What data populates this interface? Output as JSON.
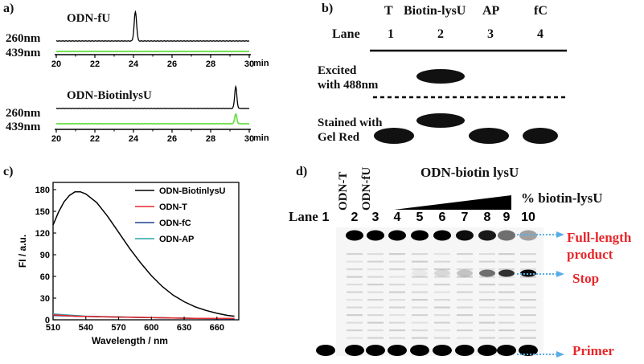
{
  "panel_a": {
    "label": "a)",
    "x_unit": "min",
    "upper": {
      "name": "ODN-fU",
      "ch1": "260nm",
      "ch2": "439nm",
      "peak_260": 24.1,
      "peak_439": null
    },
    "lower": {
      "name": "ODN-BiotinlysU",
      "ch1": "260nm",
      "ch2": "439nm",
      "peak_260": 29.3,
      "peak_439": 29.3
    },
    "ticks": [
      "20",
      "22",
      "24",
      "26",
      "28",
      "30"
    ],
    "colors": {
      "ch1": "#000000",
      "ch2": "#6ee04a"
    }
  },
  "panel_b": {
    "label": "b)",
    "lane_header": "Lane",
    "lanes": [
      {
        "name": "T",
        "num": "1"
      },
      {
        "name": "Biotin-lysU",
        "num": "2"
      },
      {
        "name": "AP",
        "num": "3"
      },
      {
        "name": "fC",
        "num": "4"
      }
    ],
    "row1": "Excited\nwith 488nm",
    "row2": "Stained with\nGel Red"
  },
  "panel_c": {
    "label": "c)",
    "legend": [
      {
        "name": "ODN-BiotinlysU",
        "color": "#000000"
      },
      {
        "name": "ODN-T",
        "color": "#e8262a"
      },
      {
        "name": "ODN-fC",
        "color": "#1f3f8f"
      },
      {
        "name": "ODN-AP",
        "color": "#2aa5a5"
      }
    ]
  },
  "chart_data": {
    "type": "line",
    "title": "",
    "xlabel": "Wavelength / nm",
    "ylabel": "FI / a.u.",
    "xlim": [
      510,
      680
    ],
    "ylim": [
      0,
      190
    ],
    "x_ticks": [
      "510",
      "540",
      "570",
      "600",
      "630",
      "660"
    ],
    "y_ticks": [
      "0",
      "30",
      "60",
      "90",
      "120",
      "150",
      "180"
    ],
    "grid": false,
    "legend_position": "top-right",
    "series": [
      {
        "name": "ODN-BiotinlysU",
        "color": "#000000",
        "x": [
          510,
          515,
          520,
          525,
          530,
          535,
          540,
          550,
          560,
          570,
          580,
          590,
          600,
          610,
          620,
          630,
          640,
          650,
          660,
          670,
          676
        ],
        "y": [
          131,
          149,
          163,
          172,
          177,
          177,
          174,
          162,
          143,
          121,
          99,
          79,
          61,
          46,
          34,
          25,
          18,
          13,
          9,
          6,
          5
        ]
      },
      {
        "name": "ODN-T",
        "color": "#e8262a",
        "x": [
          510,
          530,
          560,
          600,
          640,
          676
        ],
        "y": [
          7,
          5,
          4,
          3,
          2,
          2
        ]
      },
      {
        "name": "ODN-fC",
        "color": "#1f3f8f",
        "x": [
          510,
          530,
          560,
          600,
          640,
          676
        ],
        "y": [
          6,
          5,
          4,
          3,
          2,
          1.5
        ]
      },
      {
        "name": "ODN-AP",
        "color": "#2aa5a5",
        "x": [
          510,
          520,
          540,
          570,
          600,
          640,
          676
        ],
        "y": [
          8,
          7,
          5,
          4,
          3,
          2,
          2
        ]
      }
    ]
  },
  "panel_d": {
    "label": "d)",
    "title": "ODN-biotin lysU",
    "percent_label": "% biotin-lysU",
    "lane_header": "Lane",
    "lane_numbers": [
      "1",
      "2",
      "3",
      "4",
      "5",
      "6",
      "7",
      "8",
      "9",
      "10"
    ],
    "rotated_labels": [
      "ODN-T",
      "ODN-fU"
    ],
    "full_length": "Full-length\nproduct",
    "stop": "Stop",
    "primer": "Primer",
    "label_color": "#e8262a",
    "arrow_color": "#5aaee6",
    "full_length_intensity": [
      0,
      1,
      1,
      1,
      1,
      1,
      0.95,
      0.9,
      0.55,
      0.35
    ],
    "stop_intensity": [
      0,
      0,
      0,
      0,
      0.05,
      0.12,
      0.2,
      0.55,
      0.8,
      0.95
    ]
  }
}
